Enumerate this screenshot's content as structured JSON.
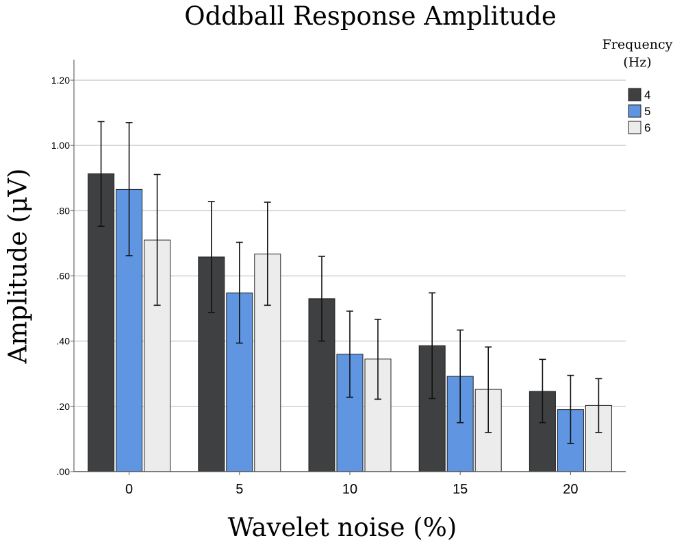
{
  "chart_data": {
    "type": "bar",
    "title": "Oddball Response Amplitude",
    "xlabel": "Wavelet noise (%)",
    "ylabel": "Amplitude (μV)",
    "categories": [
      "0",
      "5",
      "10",
      "15",
      "20"
    ],
    "ylim": [
      0,
      1.2
    ],
    "yticks": [
      ".00",
      ".20",
      ".40",
      ".60",
      ".80",
      "1.00",
      "1.20"
    ],
    "grid": true,
    "legend": {
      "title_line1": "Frequency",
      "title_line2": "(Hz)",
      "placement": "top-right"
    },
    "series": [
      {
        "name": "4",
        "color": "#3f4041",
        "values": [
          0.913,
          0.658,
          0.53,
          0.386,
          0.246
        ],
        "err_low": [
          0.752,
          0.488,
          0.4,
          0.224,
          0.15
        ],
        "err_high": [
          1.073,
          0.828,
          0.66,
          0.548,
          0.344
        ]
      },
      {
        "name": "5",
        "color": "#5f95e1",
        "values": [
          0.865,
          0.548,
          0.36,
          0.292,
          0.19
        ],
        "err_low": [
          0.662,
          0.394,
          0.228,
          0.15,
          0.086
        ],
        "err_high": [
          1.07,
          0.703,
          0.492,
          0.434,
          0.295
        ]
      },
      {
        "name": "6",
        "color": "#ececec",
        "values": [
          0.71,
          0.667,
          0.345,
          0.252,
          0.203
        ],
        "err_low": [
          0.51,
          0.51,
          0.222,
          0.12,
          0.12
        ],
        "err_high": [
          0.911,
          0.826,
          0.467,
          0.382,
          0.285
        ]
      }
    ]
  }
}
